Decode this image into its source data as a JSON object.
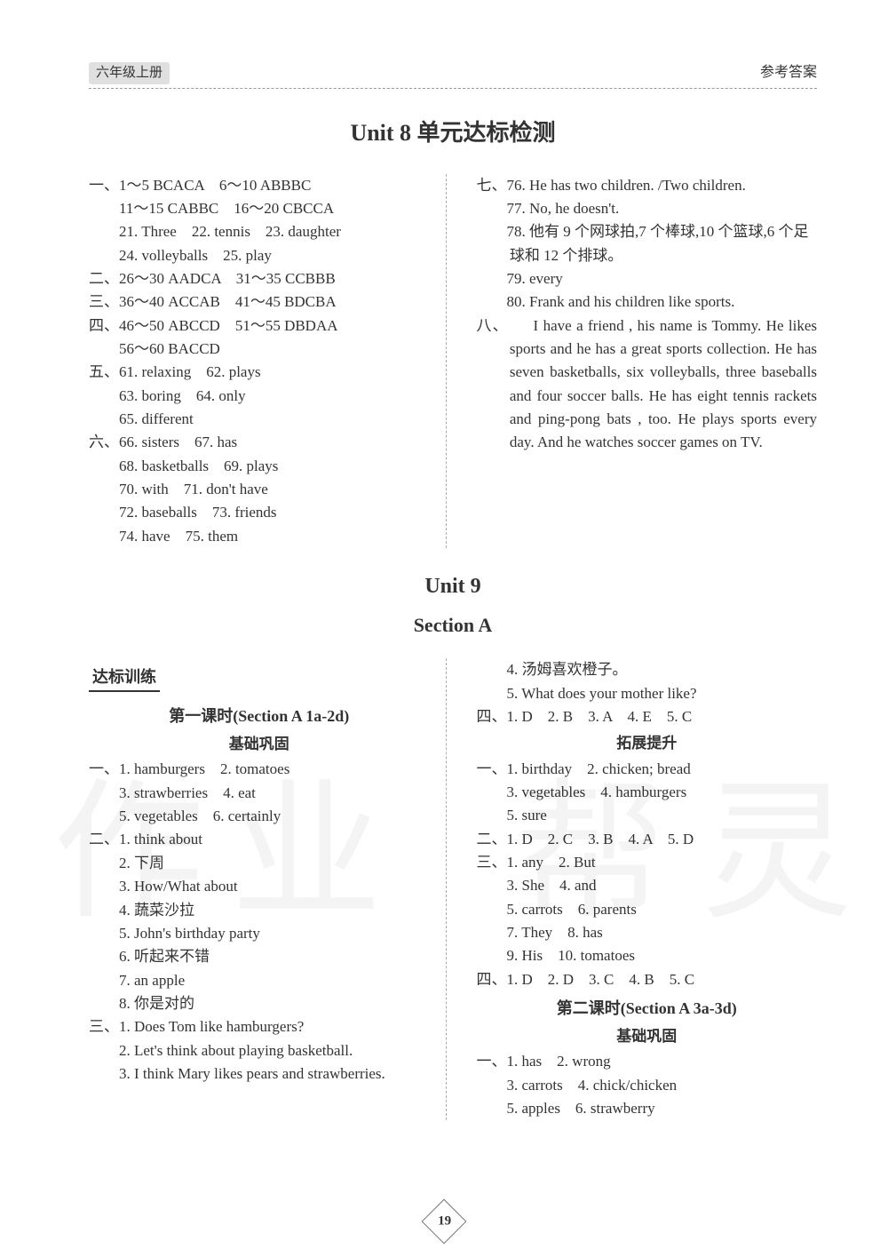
{
  "header": {
    "left": "六年级上册",
    "right": "参考答案"
  },
  "title_main": "Unit 8 单元达标检测",
  "unit8": {
    "left": [
      "一、1～5 BCACA　6～10 ABBBC",
      "　　11～15 CABBC　16～20 CBCCA",
      "　　21. Three　22. tennis　23. daughter",
      "　　24. volleyballs　25. play",
      "二、26～30 AADCA　31～35 CCBBB",
      "三、36～40 ACCAB　41～45 BDCBA",
      "四、46～50 ABCCD　51～55 DBDAA",
      "　　56～60 BACCD",
      "五、61. relaxing　62. plays",
      "　　63. boring　64. only",
      "　　65. different",
      "六、66. sisters　67. has",
      "　　68. basketballs　69. plays",
      "　　70. with　71. don't have",
      "　　72. baseballs　73. friends",
      "　　74. have　75. them"
    ],
    "right_intro": [
      "七、76. He has two children. /Two children.",
      "　　77. No, he doesn't.",
      "　　78. 他有 9 个网球拍,7 个棒球,10 个篮球,6 个足球和 12 个排球。",
      "　　79. every",
      "　　80. Frank and his children like sports."
    ],
    "right_eight_label": "八、",
    "right_eight_text": "　　I have a friend , his name is Tommy. He likes sports and he has a great sports collection. He has seven basketballs, six volleyballs, three baseballs and four soccer balls. He has eight tennis rackets and ping-pong bats , too. He plays sports every day. And he watches soccer games on TV."
  },
  "unit9_title": "Unit 9",
  "section_title": "Section A",
  "dabiao_label": "达标训练",
  "lesson1_title": "第一课时(Section A 1a-2d)",
  "jichu_label": "基础巩固",
  "tuozhan_label": "拓展提升",
  "lesson2_title": "第二课时(Section A 3a-3d)",
  "left_bottom": [
    "一、1. hamburgers　2. tomatoes",
    "　　3. strawberries　4. eat",
    "　　5. vegetables　6. certainly",
    "二、1. think about",
    "　　2. 下周",
    "　　3. How/What about",
    "　　4. 蔬菜沙拉",
    "　　5. John's birthday party",
    "　　6. 听起来不错",
    "　　7. an apple",
    "　　8. 你是对的",
    "三、1. Does Tom like hamburgers?",
    "　　2. Let's think about playing basketball.",
    "　　3. I think Mary likes pears and strawberries."
  ],
  "right_bottom_a": [
    "　　4. 汤姆喜欢橙子。",
    "　　5. What does your mother like?",
    "四、1. D　2. B　3. A　4. E　5. C"
  ],
  "right_tuozhan": [
    "一、1. birthday　2. chicken; bread",
    "　　3. vegetables　4. hamburgers",
    "　　5. sure",
    "二、1. D　2. C　3. B　4. A　5. D",
    "三、1. any　2. But",
    "　　3. She　4. and",
    "　　5. carrots　6. parents",
    "　　7. They　8. has",
    "　　9. His　10. tomatoes",
    "四、1. D　2. D　3. C　4. B　5. C"
  ],
  "right_lesson2": [
    "一、1. has　2. wrong",
    "　　3. carrots　4. chick/chicken",
    "　　5. apples　6. strawberry"
  ],
  "page_number": "19",
  "colors": {
    "text": "#333333",
    "divider": "#aaaaaa",
    "bg": "#ffffff"
  },
  "typography": {
    "body_pt": 13,
    "title_pt": 20,
    "font": "SimSun/Times"
  }
}
